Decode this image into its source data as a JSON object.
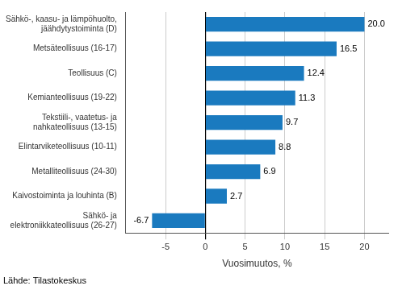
{
  "chart_data": {
    "type": "bar",
    "orientation": "horizontal",
    "categories": [
      "Sähkö-, kaasu- ja lämpöhuolto,\njäähdytystoiminta (D)",
      "Metsäteollisuus (16-17)",
      "Teollisuus (C)",
      "Kemianteollisuus (19-22)",
      "Tekstiili-, vaatetus- ja\nnahkateollisuus (13-15)",
      "Elintarviketeollisuus (10-11)",
      "Metalliteollisuus (24-30)",
      "Kaivostoiminta ja louhinta (B)",
      "Sähkö- ja\nelektroniikkateollisuus (26-27)"
    ],
    "values": [
      20.0,
      16.5,
      12.4,
      11.3,
      9.7,
      8.8,
      6.9,
      2.7,
      -6.7
    ],
    "value_labels": [
      "20.0",
      "16.5",
      "12.4",
      "11.3",
      "9.7",
      "8.8",
      "6.9",
      "2.7",
      "-6.7"
    ],
    "data_labels": true,
    "color": "#1a7abf",
    "xlabel": "Vuosimuutos, %",
    "xlim": [
      -10,
      23
    ],
    "xticks": [
      -5,
      0,
      5,
      10,
      15,
      20
    ],
    "grid": true,
    "annotations": [
      "Lähde: Tilastokeskus"
    ]
  }
}
